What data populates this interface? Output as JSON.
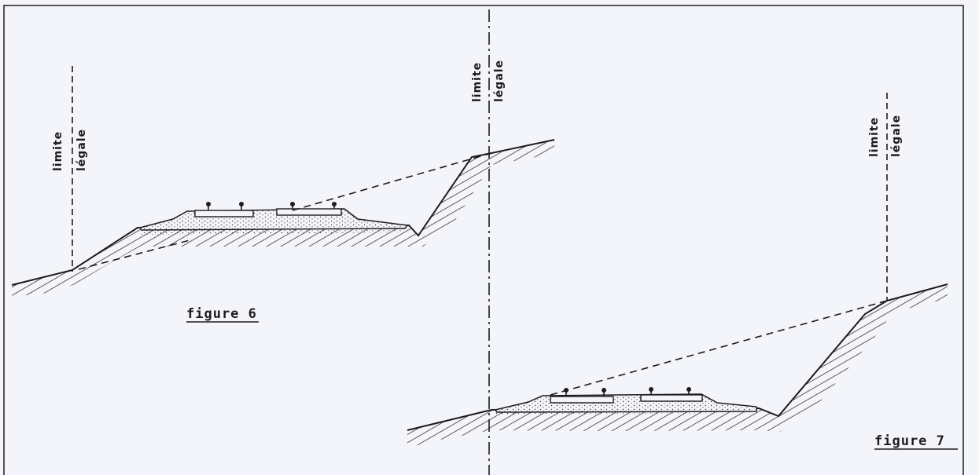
{
  "figure6": {
    "caption": "figure 6",
    "limit_left": {
      "line1": "limite",
      "line2": "légale"
    },
    "limit_right": {
      "line1": "limite",
      "line2": "légale"
    }
  },
  "figure7": {
    "caption": "figure 7",
    "limit_right": {
      "line1": "limite",
      "line2": "légale"
    }
  },
  "colors": {
    "ink": "#1c1c1c",
    "paper": "#f4f5fb"
  }
}
